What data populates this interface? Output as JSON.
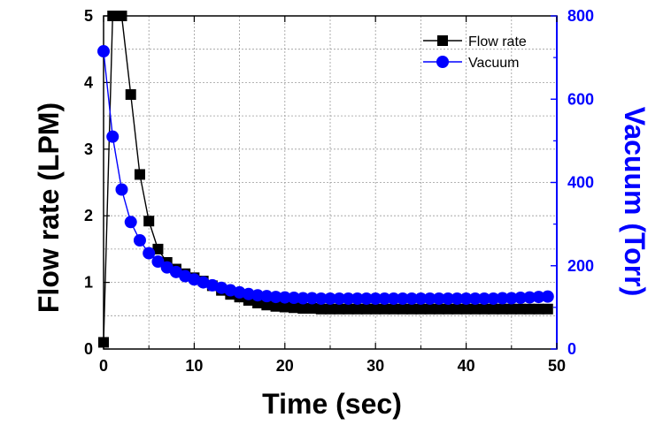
{
  "chart_data": {
    "type": "line",
    "xlabel": "Time (sec)",
    "ylabel": "Flow rate (LPM)",
    "y2label": "Vacuum (Torr)",
    "xlim": [
      0,
      50
    ],
    "ylim": [
      0,
      5
    ],
    "y2lim": [
      0,
      800
    ],
    "x_ticks": [
      "0",
      "10",
      "20",
      "30",
      "40",
      "50"
    ],
    "y_ticks": [
      "0",
      "1",
      "2",
      "3",
      "4",
      "5"
    ],
    "y2_ticks": [
      "0",
      "200",
      "400",
      "600",
      "800"
    ],
    "grid": true,
    "legend_position": "top-right",
    "x": [
      0,
      1,
      2,
      3,
      4,
      5,
      6,
      7,
      8,
      9,
      10,
      11,
      12,
      13,
      14,
      15,
      16,
      17,
      18,
      19,
      20,
      21,
      22,
      23,
      24,
      25,
      26,
      27,
      28,
      29,
      30,
      31,
      32,
      33,
      34,
      35,
      36,
      37,
      38,
      39,
      40,
      41,
      42,
      43,
      44,
      45,
      46,
      47,
      48,
      49
    ],
    "series": [
      {
        "name": "Flow rate",
        "axis": "left",
        "marker": "square",
        "color": "#000000",
        "values": [
          0.1,
          5.0,
          5.0,
          3.82,
          2.62,
          1.92,
          1.5,
          1.3,
          1.2,
          1.13,
          1.07,
          1.02,
          0.95,
          0.88,
          0.82,
          0.78,
          0.73,
          0.69,
          0.66,
          0.64,
          0.63,
          0.62,
          0.61,
          0.61,
          0.6,
          0.6,
          0.6,
          0.6,
          0.6,
          0.6,
          0.6,
          0.6,
          0.6,
          0.6,
          0.6,
          0.6,
          0.6,
          0.6,
          0.6,
          0.6,
          0.6,
          0.6,
          0.6,
          0.6,
          0.6,
          0.6,
          0.6,
          0.6,
          0.6,
          0.6
        ]
      },
      {
        "name": "Vacuum",
        "axis": "right",
        "marker": "circle",
        "color": "#0000ff",
        "values": [
          715,
          510,
          383,
          305,
          261,
          230,
          210,
          196,
          185,
          175,
          167,
          160,
          153,
          147,
          141,
          136,
          132,
          129,
          127,
          125,
          124,
          123,
          122,
          122,
          121,
          121,
          121,
          121,
          121,
          121,
          121,
          121,
          121,
          121,
          121,
          121,
          121,
          121,
          121,
          121,
          121,
          121,
          121,
          121,
          122,
          122,
          123,
          124,
          125,
          126
        ]
      }
    ]
  }
}
